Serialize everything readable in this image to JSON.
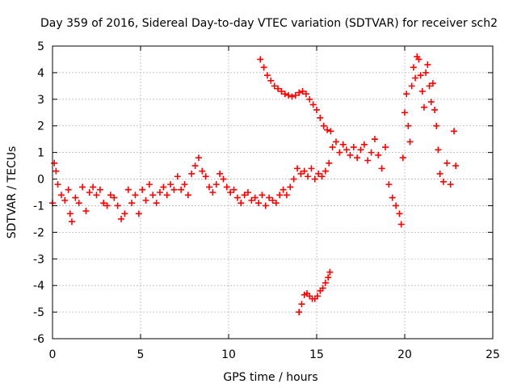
{
  "chart_data": {
    "type": "scatter",
    "title": "Day 359 of 2016, Sidereal Day-to-day VTEC variation (SDTVAR) for receiver sch2",
    "xlabel": "GPS time / hours",
    "ylabel": "SDTVAR / TECUs",
    "xlim": [
      0,
      25
    ],
    "ylim": [
      -6,
      5
    ],
    "x_ticks": [
      0,
      5,
      10,
      15,
      20,
      25
    ],
    "y_ticks": [
      -6,
      -5,
      -4,
      -3,
      -2,
      -1,
      0,
      1,
      2,
      3,
      4,
      5
    ],
    "grid": true,
    "marker": "plus",
    "series_color": "#ff0000",
    "series": [
      {
        "name": "main",
        "x": [
          0.0,
          0.1,
          0.2,
          0.3,
          0.5,
          0.7,
          0.9,
          1.0,
          1.1,
          1.3,
          1.5,
          1.7,
          1.9,
          2.1,
          2.3,
          2.5,
          2.7,
          2.9,
          3.1,
          3.3,
          3.5,
          3.7,
          3.9,
          4.1,
          4.3,
          4.5,
          4.7,
          4.9,
          5.1,
          5.3,
          5.5,
          5.7,
          5.9,
          6.1,
          6.3,
          6.5,
          6.7,
          6.9,
          7.1,
          7.3,
          7.5,
          7.7,
          7.9,
          8.1,
          8.3,
          8.5,
          8.7,
          8.9,
          9.1,
          9.3,
          9.5,
          9.7,
          9.9,
          10.1,
          10.3,
          10.5,
          10.7,
          10.9,
          11.1,
          11.3,
          11.5,
          11.7,
          11.9,
          12.1,
          12.3,
          12.5,
          12.7,
          12.9,
          13.1,
          13.3,
          13.5,
          13.7,
          13.9,
          14.1,
          14.3,
          14.5,
          14.7,
          14.9,
          15.1,
          15.3,
          15.5,
          15.7
        ],
        "y": [
          -0.9,
          0.6,
          0.3,
          -0.2,
          -0.6,
          -0.8,
          -0.4,
          -1.3,
          -1.6,
          -0.7,
          -0.9,
          -0.3,
          -1.2,
          -0.5,
          -0.3,
          -0.6,
          -0.4,
          -0.9,
          -1.0,
          -0.6,
          -0.7,
          -1.0,
          -1.5,
          -1.3,
          -0.4,
          -0.9,
          -0.6,
          -1.3,
          -0.4,
          -0.8,
          -0.2,
          -0.6,
          -0.9,
          -0.5,
          -0.3,
          -0.6,
          -0.2,
          -0.4,
          0.1,
          -0.4,
          -0.2,
          -0.6,
          0.2,
          0.5,
          0.8,
          0.3,
          0.1,
          -0.3,
          -0.5,
          -0.2,
          0.2,
          0.0,
          -0.3,
          -0.5,
          -0.4,
          -0.7,
          -0.9,
          -0.6,
          -0.5,
          -0.8,
          -0.7,
          -0.9,
          -0.6,
          -1.0,
          -0.7,
          -0.8,
          -0.9,
          -0.6,
          -0.4,
          -0.6,
          -0.3,
          0.0,
          0.4,
          0.2,
          0.3,
          0.1,
          0.4,
          0.0,
          0.2,
          0.1,
          0.3,
          0.6
        ]
      },
      {
        "name": "upper-descending",
        "x": [
          11.8,
          12.0,
          12.2,
          12.4,
          12.6,
          12.8,
          13.0,
          13.2,
          13.4,
          13.6,
          13.8,
          14.0,
          14.2,
          14.4,
          14.6,
          14.8,
          15.0,
          15.2,
          15.4,
          15.6,
          15.8
        ],
        "y": [
          4.5,
          4.2,
          3.9,
          3.7,
          3.5,
          3.4,
          3.3,
          3.2,
          3.15,
          3.1,
          3.15,
          3.25,
          3.3,
          3.2,
          3.0,
          2.8,
          2.6,
          2.3,
          2.0,
          1.85,
          1.8
        ]
      },
      {
        "name": "lower-rising",
        "x": [
          14.0,
          14.15,
          14.3,
          14.45,
          14.6,
          14.75,
          14.9,
          15.05,
          15.2,
          15.35,
          15.5,
          15.65,
          15.75
        ],
        "y": [
          -5.0,
          -4.7,
          -4.35,
          -4.3,
          -4.4,
          -4.5,
          -4.5,
          -4.4,
          -4.2,
          -4.1,
          -3.9,
          -3.7,
          -3.5
        ]
      },
      {
        "name": "late",
        "x": [
          15.9,
          16.1,
          16.3,
          16.5,
          16.7,
          16.9,
          17.1,
          17.3,
          17.5,
          17.7,
          17.9,
          18.1,
          18.3,
          18.5,
          18.7,
          18.9,
          19.1,
          19.3,
          19.5,
          19.7,
          19.8,
          19.9,
          20.0,
          20.1,
          20.2,
          20.3,
          20.4,
          20.5,
          20.6,
          20.7,
          20.8,
          20.9,
          21.0,
          21.1,
          21.2,
          21.3,
          21.4,
          21.5,
          21.6,
          21.7,
          21.8,
          21.9,
          22.0,
          22.2,
          22.4,
          22.6,
          22.8,
          22.9
        ],
        "y": [
          1.2,
          1.4,
          1.0,
          1.3,
          1.1,
          0.9,
          1.2,
          0.8,
          1.1,
          1.3,
          0.7,
          1.0,
          1.5,
          0.9,
          0.4,
          1.2,
          -0.2,
          -0.7,
          -1.0,
          -1.3,
          -1.7,
          0.8,
          2.5,
          3.2,
          2.0,
          1.4,
          3.5,
          4.2,
          3.8,
          4.6,
          4.5,
          3.9,
          3.3,
          2.7,
          4.0,
          4.3,
          3.5,
          2.9,
          3.6,
          2.6,
          2.0,
          1.1,
          0.2,
          -0.1,
          0.6,
          -0.2,
          1.8,
          0.5
        ]
      }
    ]
  }
}
